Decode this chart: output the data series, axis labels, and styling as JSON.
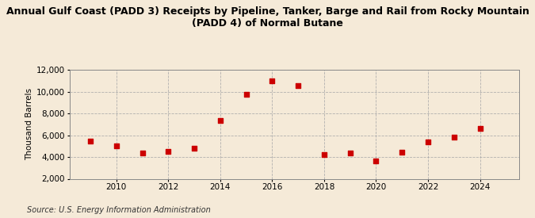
{
  "title": "Annual Gulf Coast (PADD 3) Receipts by Pipeline, Tanker, Barge and Rail from Rocky Mountain\n(PADD 4) of Normal Butane",
  "ylabel": "Thousand Barrels",
  "source": "Source: U.S. Energy Information Administration",
  "years": [
    2009,
    2010,
    2011,
    2012,
    2013,
    2014,
    2015,
    2016,
    2017,
    2018,
    2019,
    2020,
    2021,
    2022,
    2023,
    2024
  ],
  "values": [
    5450,
    5000,
    4400,
    4500,
    4800,
    7350,
    9750,
    11000,
    10550,
    4200,
    4350,
    3650,
    4450,
    5350,
    5800,
    6650
  ],
  "marker_color": "#cc0000",
  "background_color": "#f5ead8",
  "grid_color": "#aaaaaa",
  "ylim": [
    2000,
    12000
  ],
  "yticks": [
    2000,
    4000,
    6000,
    8000,
    10000,
    12000
  ],
  "xticks": [
    2010,
    2012,
    2014,
    2016,
    2018,
    2020,
    2022,
    2024
  ],
  "title_fontsize": 9,
  "label_fontsize": 7.5,
  "source_fontsize": 7
}
